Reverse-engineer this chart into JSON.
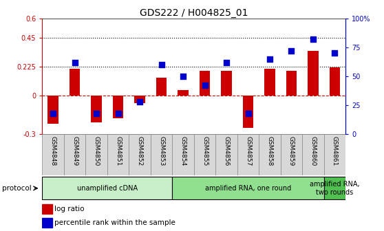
{
  "title": "GDS222 / H004825_01",
  "categories": [
    "GSM4848",
    "GSM4849",
    "GSM4850",
    "GSM4851",
    "GSM4852",
    "GSM4853",
    "GSM4854",
    "GSM4855",
    "GSM4856",
    "GSM4857",
    "GSM4858",
    "GSM4859",
    "GSM4860",
    "GSM4861"
  ],
  "log_ratio": [
    -0.22,
    0.21,
    -0.21,
    -0.18,
    -0.06,
    0.14,
    0.04,
    0.19,
    0.19,
    -0.25,
    0.21,
    0.19,
    0.35,
    0.22
  ],
  "percentile_rank": [
    18,
    62,
    18,
    18,
    28,
    60,
    50,
    42,
    62,
    18,
    65,
    72,
    82,
    70
  ],
  "ylim_left": [
    -0.3,
    0.6
  ],
  "ylim_right": [
    0,
    100
  ],
  "yticks_left": [
    -0.3,
    0,
    0.225,
    0.45,
    0.6
  ],
  "yticks_right": [
    0,
    25,
    50,
    75,
    100
  ],
  "ytick_labels_left": [
    "-0.3",
    "0",
    "0.225",
    "0.45",
    "0.6"
  ],
  "ytick_labels_right": [
    "0",
    "25",
    "50",
    "75",
    "100%"
  ],
  "hlines": [
    0.225,
    0.45
  ],
  "protocol_groups": [
    {
      "label": "unamplified cDNA",
      "start": 0,
      "end": 5,
      "color": "#c8f0c8"
    },
    {
      "label": "amplified RNA, one round",
      "start": 6,
      "end": 12,
      "color": "#90e090"
    },
    {
      "label": "amplified RNA,\ntwo rounds",
      "start": 13,
      "end": 13,
      "color": "#50c050"
    }
  ],
  "bar_color": "#cc0000",
  "dot_color": "#0000cc",
  "bar_width": 0.5,
  "dot_size": 30,
  "background_color": "#ffffff",
  "tick_label_color_left": "#cc0000",
  "tick_label_color_right": "#0000cc",
  "legend_items": [
    "log ratio",
    "percentile rank within the sample"
  ],
  "protocol_label": "protocol"
}
